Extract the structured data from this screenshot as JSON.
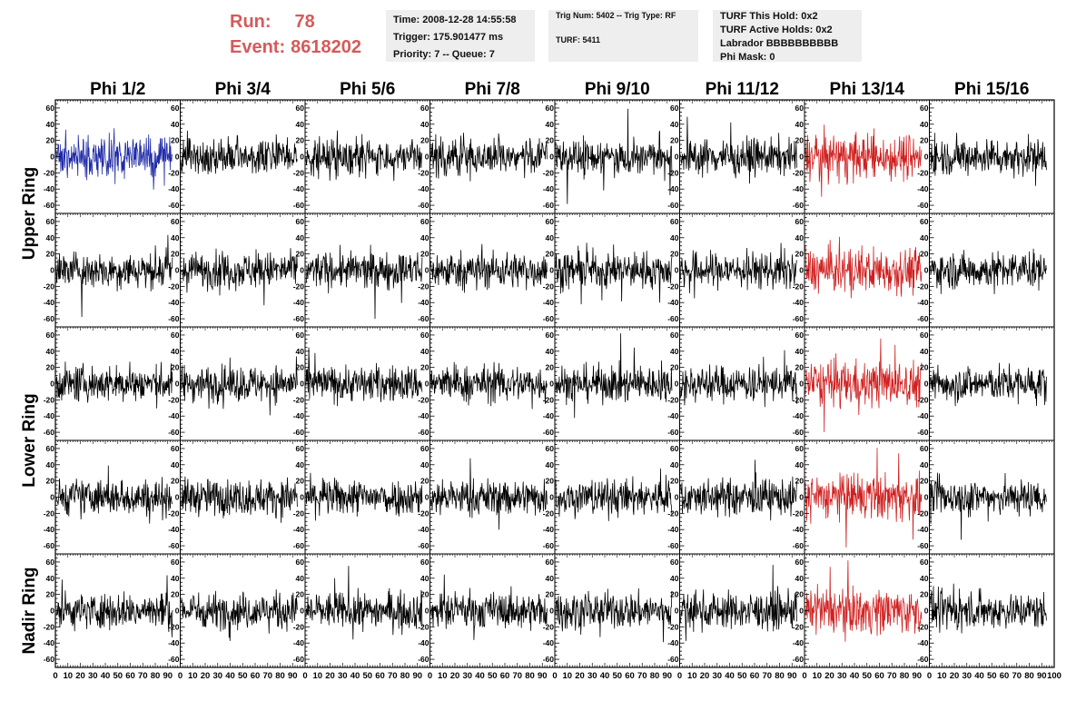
{
  "header": {
    "run_label": "Run:",
    "run_value": "78",
    "event_label": "Event:",
    "event_value": "8618202",
    "run_color": "#d65a5a"
  },
  "info_time": {
    "time": "Time: 2008-12-28 14:55:58",
    "trigger": "Trigger: 175.901477 ms",
    "priority": "Priority: 7 -- Queue: 7"
  },
  "info_trig": {
    "trig": "Trig Num: 5402 -- Trig Type: RF",
    "turf": "TURF: 5411"
  },
  "info_turf": {
    "hold": "TURF This Hold: 0x2",
    "active": "TURF Active Holds: 0x2",
    "labrador": "Labrador BBBBBBBBBB",
    "mask": "Phi Mask: 0"
  },
  "chart_data": {
    "type": "line",
    "columns": [
      "Phi 1/2",
      "Phi 3/4",
      "Phi 5/6",
      "Phi 7/8",
      "Phi 9/10",
      "Phi 11/12",
      "Phi 13/14",
      "Phi 15/16"
    ],
    "rows": [
      "Upper Ring",
      "Upper Ring",
      "Lower Ring",
      "Lower Ring",
      "Nadir Ring"
    ],
    "row_labels": [
      {
        "label": "Upper Ring",
        "rows": [
          0,
          1
        ]
      },
      {
        "label": "Lower Ring",
        "rows": [
          2,
          3
        ]
      },
      {
        "label": "Nadir Ring",
        "rows": [
          4
        ]
      }
    ],
    "xlim": [
      0,
      100
    ],
    "ylim": [
      -70,
      70
    ],
    "x_ticks": [
      "0",
      "10",
      "20",
      "30",
      "40",
      "50",
      "60",
      "70",
      "80",
      "90",
      "100"
    ],
    "y_ticks": [
      "-60",
      "-40",
      "-20",
      "0",
      "20",
      "40",
      "60"
    ],
    "samples_per_trace": 260,
    "colors": {
      "normal": "#000000",
      "triggered": "#d02020",
      "selected": "#1f2aa8"
    },
    "trace_color_map": [
      [
        "selected",
        "normal",
        "normal",
        "normal",
        "normal",
        "normal",
        "triggered",
        "normal"
      ],
      [
        "normal",
        "normal",
        "normal",
        "normal",
        "normal",
        "normal",
        "triggered",
        "normal"
      ],
      [
        "normal",
        "normal",
        "normal",
        "normal",
        "normal",
        "normal",
        "triggered",
        "normal"
      ],
      [
        "normal",
        "normal",
        "normal",
        "normal",
        "normal",
        "normal",
        "triggered",
        "normal"
      ],
      [
        "normal",
        "normal",
        "normal",
        "normal",
        "normal",
        "normal",
        "triggered",
        "normal"
      ]
    ],
    "noise_amplitude_rms": 11
  }
}
